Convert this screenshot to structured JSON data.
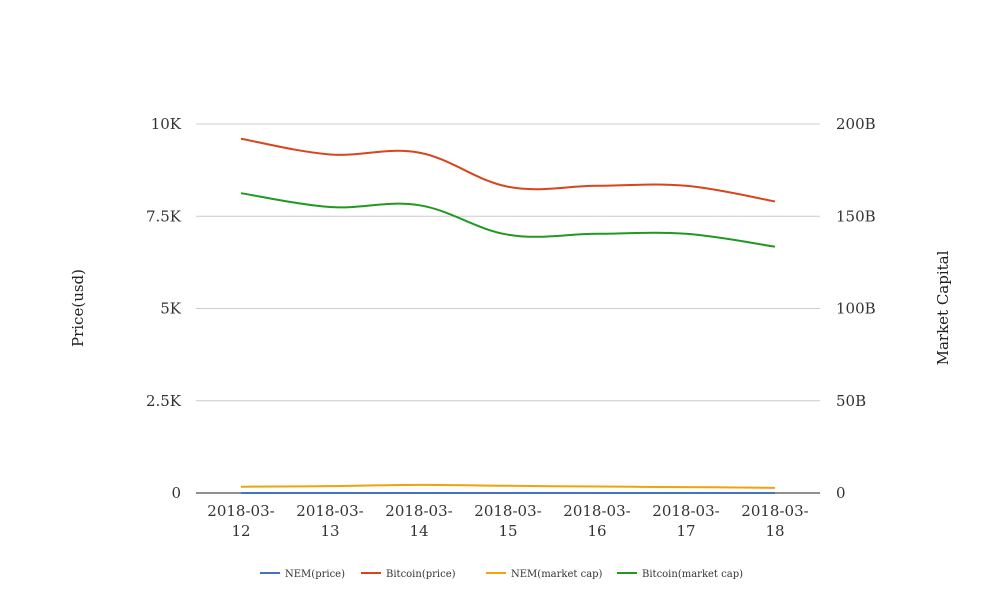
{
  "chart_data": {
    "type": "line",
    "categories": [
      "2018-03-12",
      "2018-03-13",
      "2018-03-14",
      "2018-03-15",
      "2018-03-16",
      "2018-03-17",
      "2018-03-18"
    ],
    "category_labels": [
      [
        "2018-03-",
        "12"
      ],
      [
        "2018-03-",
        "13"
      ],
      [
        "2018-03-",
        "14"
      ],
      [
        "2018-03-",
        "15"
      ],
      [
        "2018-03-",
        "16"
      ],
      [
        "2018-03-",
        "17"
      ],
      [
        "2018-03-",
        "18"
      ]
    ],
    "y_left": {
      "label": "Price(usd)",
      "min": 0,
      "max": 10000,
      "ticks": [
        0,
        2500,
        5000,
        7500,
        10000
      ],
      "tick_labels": [
        "0",
        "2.5K",
        "5K",
        "7.5K",
        "10K"
      ]
    },
    "y_right": {
      "label": "Market Capital",
      "min": 0,
      "max": 200000000000,
      "ticks": [
        0,
        50000000000,
        100000000000,
        150000000000,
        200000000000
      ],
      "tick_labels": [
        "0",
        "50B",
        "100B",
        "150B",
        "200B"
      ]
    },
    "grid": true,
    "legend_position": "bottom",
    "series": [
      {
        "name": "NEM(price)",
        "axis": "left",
        "color": "#4472C4",
        "values": [
          0.38,
          0.37,
          0.37,
          0.31,
          0.29,
          0.28,
          0.26
        ]
      },
      {
        "name": "Bitcoin(price)",
        "axis": "right",
        "color": "#D9441D",
        "values": [
          192000000000,
          183500000000,
          184500000000,
          166000000000,
          166500000000,
          166500000000,
          158000000000
        ]
      },
      {
        "name": "NEM(market cap)",
        "axis": "right",
        "color": "#F0A30A",
        "values": [
          3400000000,
          3700000000,
          4400000000,
          3900000000,
          3500000000,
          3200000000,
          2800000000
        ]
      },
      {
        "name": "Bitcoin(market cap)",
        "axis": "right",
        "color": "#1F9A1F",
        "values": [
          162500000000,
          155000000000,
          156000000000,
          140000000000,
          140500000000,
          140500000000,
          133500000000
        ]
      }
    ]
  }
}
